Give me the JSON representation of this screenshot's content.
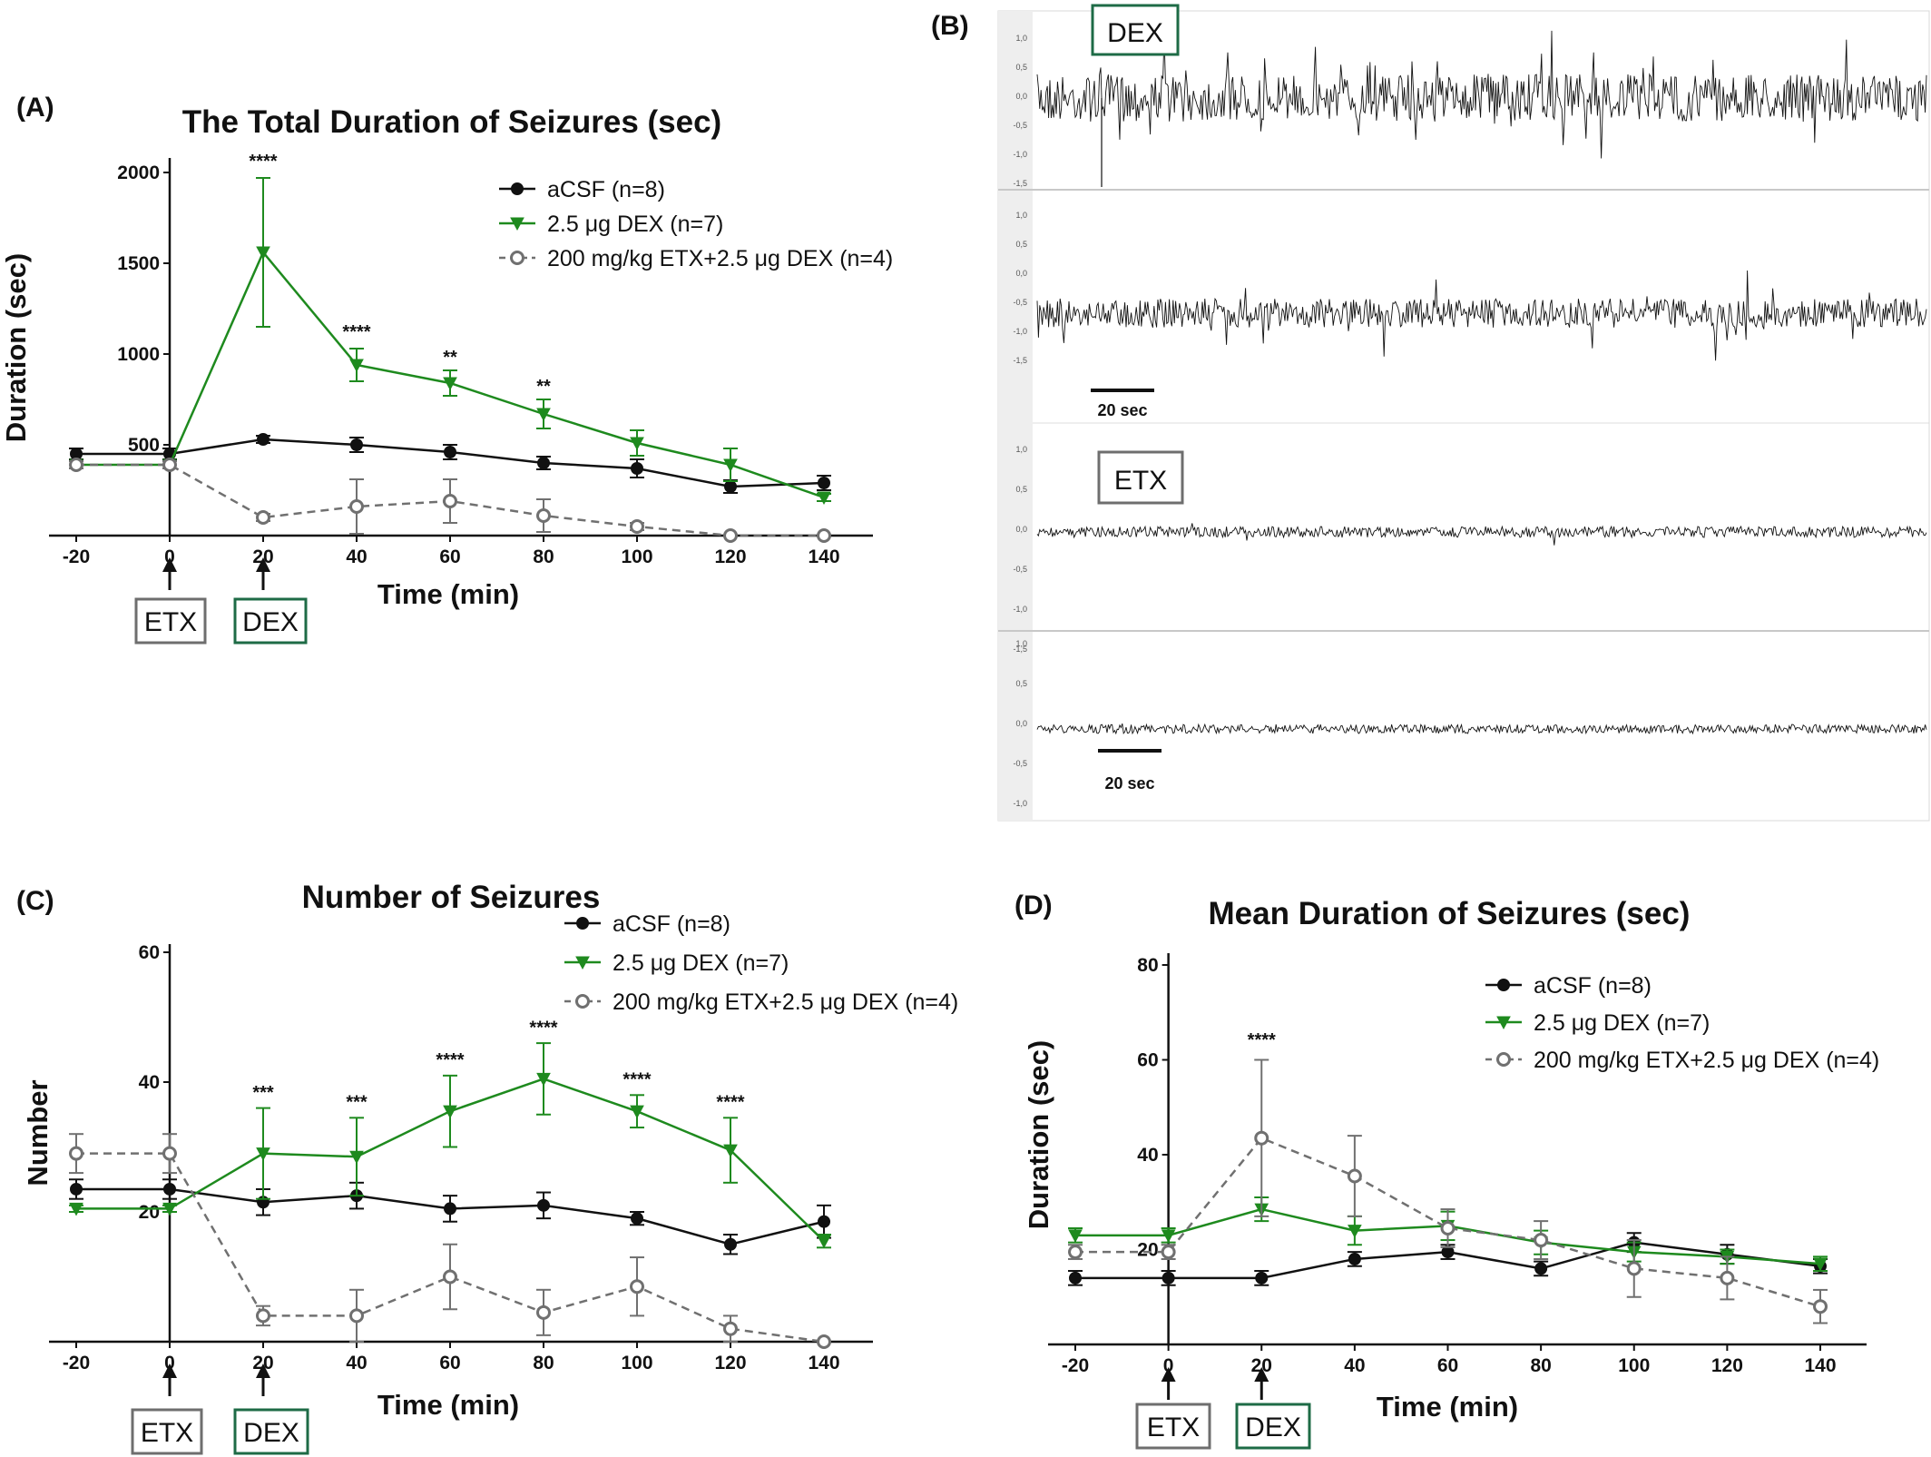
{
  "colors": {
    "acsf": "#111111",
    "dex": "#1e8a1e",
    "etx": "#707070",
    "dex_box": "#1e6b46",
    "etx_box": "#6e6e6e"
  },
  "panel_a": {
    "letter": "(A)"
  },
  "panel_b": {
    "letter": "(B)",
    "dex_label": "DEX",
    "etx_label": "ETX",
    "scale_label_1": "20 sec",
    "scale_label_2": "20 sec",
    "trace_ticks": [
      "1,0",
      "0,5",
      "0,0",
      "-0,5",
      "-1,0",
      "-1,5"
    ]
  },
  "panel_c": {
    "letter": "(C)"
  },
  "panel_d": {
    "letter": "(D)"
  },
  "markers": {
    "etx": "ETX",
    "dex": "DEX"
  },
  "chart_data": [
    {
      "type": "line",
      "panel": "A",
      "title": "The Total Duration of Seizures (sec)",
      "xlabel": "Time (min)",
      "ylabel": "Duration (sec)",
      "x": [
        -20,
        0,
        20,
        40,
        60,
        80,
        100,
        120,
        140
      ],
      "x_ticks": [
        "-20",
        "0",
        "20",
        "40",
        "60",
        "80",
        "100",
        "120",
        "140"
      ],
      "y_ticks": [
        "500",
        "1000",
        "1500",
        "2000"
      ],
      "xlim": [
        -20,
        140
      ],
      "ylim": [
        0,
        2000
      ],
      "legend_position": "top-right",
      "series": [
        {
          "name": "aCSF (n=8)",
          "values": [
            450,
            450,
            530,
            500,
            460,
            400,
            370,
            270,
            290
          ],
          "errors": [
            30,
            30,
            20,
            40,
            40,
            35,
            50,
            35,
            40
          ],
          "marker": "circle",
          "style": "solid"
        },
        {
          "name": "2.5 μg DEX  (n=7)",
          "values": [
            390,
            390,
            1560,
            940,
            840,
            670,
            510,
            390,
            210
          ],
          "errors": [
            20,
            20,
            410,
            90,
            70,
            80,
            70,
            90,
            20
          ],
          "marker": "triangle-down",
          "style": "solid"
        },
        {
          "name": "200 mg/kg ETX+2.5 μg DEX  (n=4)",
          "values": [
            390,
            390,
            100,
            160,
            190,
            110,
            50,
            0,
            0
          ],
          "errors": [
            20,
            20,
            20,
            150,
            120,
            90,
            20,
            0,
            0
          ],
          "marker": "open-circle",
          "style": "dashed"
        }
      ],
      "annotations": [
        {
          "x": 20,
          "text": "****",
          "y": 2030
        },
        {
          "x": 40,
          "text": "****",
          "y": 1090
        },
        {
          "x": 60,
          "text": "**",
          "y": 950
        },
        {
          "x": 80,
          "text": "**",
          "y": 790
        }
      ]
    },
    {
      "type": "line",
      "panel": "C",
      "title": "Number of Seizures",
      "xlabel": "Time (min)",
      "ylabel": "Number",
      "x": [
        -20,
        0,
        20,
        40,
        60,
        80,
        100,
        120,
        140
      ],
      "x_ticks": [
        "-20",
        "0",
        "20",
        "40",
        "60",
        "80",
        "100",
        "120",
        "140"
      ],
      "y_ticks": [
        "20",
        "40",
        "60"
      ],
      "xlim": [
        -20,
        140
      ],
      "ylim": [
        0,
        60
      ],
      "legend_position": "top-right",
      "series": [
        {
          "name": "aCSF (n=8)",
          "values": [
            23.5,
            23.5,
            21.5,
            22.5,
            20.5,
            21.0,
            19.0,
            15.0,
            18.5
          ],
          "errors": [
            1.5,
            1.5,
            2.0,
            2.0,
            2.0,
            2.0,
            1.0,
            1.5,
            2.5
          ],
          "marker": "circle",
          "style": "solid"
        },
        {
          "name": "2.5 μg DEX (n=7)",
          "values": [
            20.5,
            20.5,
            29.0,
            28.5,
            35.5,
            40.5,
            35.5,
            29.5,
            15.5
          ],
          "errors": [
            0.5,
            0.5,
            7.0,
            6.0,
            5.5,
            5.5,
            2.5,
            5.0,
            1.0
          ],
          "marker": "triangle-down",
          "style": "solid"
        },
        {
          "name": "200 mg/kg ETX+2.5 μg DEX (n=4)",
          "values": [
            29.0,
            29.0,
            4.0,
            4.0,
            10.0,
            4.5,
            8.5,
            2.0,
            0.0
          ],
          "errors": [
            3.0,
            3.0,
            1.5,
            4.0,
            5.0,
            3.5,
            4.5,
            2.0,
            0.0
          ],
          "marker": "open-circle",
          "style": "dashed"
        }
      ],
      "annotations": [
        {
          "x": 20,
          "text": "***",
          "y": 37.5
        },
        {
          "x": 40,
          "text": "***",
          "y": 36.0
        },
        {
          "x": 60,
          "text": "****",
          "y": 42.5
        },
        {
          "x": 80,
          "text": "****",
          "y": 47.5
        },
        {
          "x": 100,
          "text": "****",
          "y": 39.5
        },
        {
          "x": 120,
          "text": "****",
          "y": 36.0
        }
      ]
    },
    {
      "type": "line",
      "panel": "D",
      "title": "Mean Duration of Seizures (sec)",
      "xlabel": "Time (min)",
      "ylabel": "Duration (sec)",
      "x": [
        -20,
        0,
        20,
        40,
        60,
        80,
        100,
        120,
        140
      ],
      "x_ticks": [
        "-20",
        "0",
        "20",
        "40",
        "60",
        "80",
        "100",
        "120",
        "140"
      ],
      "y_ticks": [
        "20",
        "40",
        "60",
        "80"
      ],
      "xlim": [
        -20,
        140
      ],
      "ylim": [
        0,
        80
      ],
      "legend_position": "top-right",
      "series": [
        {
          "name": "aCSF (n=8)",
          "values": [
            14,
            14,
            14,
            18,
            19.5,
            16,
            21.5,
            19,
            16.5
          ],
          "errors": [
            1.5,
            1.5,
            1.5,
            1.5,
            1.5,
            1.5,
            2.0,
            2.0,
            1.5
          ],
          "marker": "circle",
          "style": "solid"
        },
        {
          "name": "2.5 μg DEX (n=7)",
          "values": [
            23,
            23,
            28.5,
            24,
            25,
            21.5,
            19.5,
            18.5,
            17
          ],
          "errors": [
            1.5,
            1.5,
            2.5,
            3.0,
            3.0,
            2.5,
            2.0,
            1.5,
            1.5
          ],
          "marker": "triangle-down",
          "style": "solid"
        },
        {
          "name": "200 mg/kg ETX+2.5 μg DEX (n=4)",
          "values": [
            19.5,
            19.5,
            43.5,
            35.5,
            24.5,
            22,
            16,
            14,
            8
          ],
          "errors": [
            1.5,
            1.5,
            16.5,
            8.5,
            4.0,
            4.0,
            6.0,
            4.5,
            3.5
          ],
          "marker": "open-circle",
          "style": "dashed"
        }
      ],
      "annotations": [
        {
          "x": 20,
          "text": "****",
          "y": 63
        }
      ]
    }
  ]
}
